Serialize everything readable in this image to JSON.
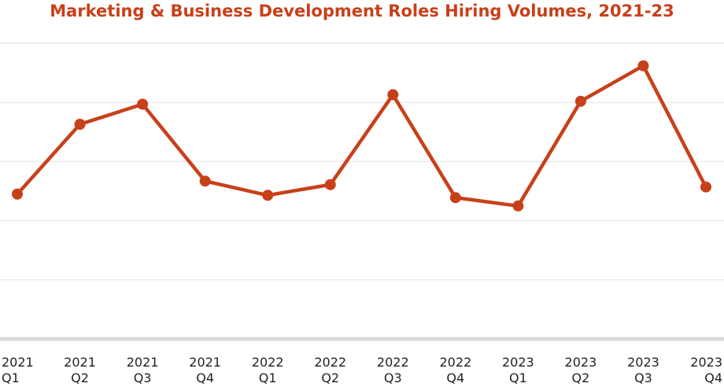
{
  "chart_data": {
    "type": "line",
    "title": "Marketing & Business Development Roles Hiring Volumes, 2021-23",
    "xlabel": "",
    "ylabel": "",
    "categories": [
      [
        "2021",
        "Q1"
      ],
      [
        "2021",
        "Q2"
      ],
      [
        "2021",
        "Q3"
      ],
      [
        "2021",
        "Q4"
      ],
      [
        "2022",
        "Q1"
      ],
      [
        "2022",
        "Q2"
      ],
      [
        "2022",
        "Q3"
      ],
      [
        "2022",
        "Q4"
      ],
      [
        "2023",
        "Q1"
      ],
      [
        "2023",
        "Q2"
      ],
      [
        "2023",
        "Q3"
      ],
      [
        "2023",
        "Q4"
      ]
    ],
    "series": [
      {
        "values": [
          2.45,
          3.63,
          3.97,
          2.67,
          2.43,
          2.61,
          4.13,
          2.39,
          2.25,
          4.02,
          4.62,
          2.57
        ]
      }
    ],
    "ylim": [
      0,
      5
    ],
    "grid": true,
    "legend": "none",
    "colors": {
      "line": "#c8401a",
      "grid": "#e2e2e2",
      "baseline": "#d9d9d9",
      "title": "#c8401a"
    }
  }
}
